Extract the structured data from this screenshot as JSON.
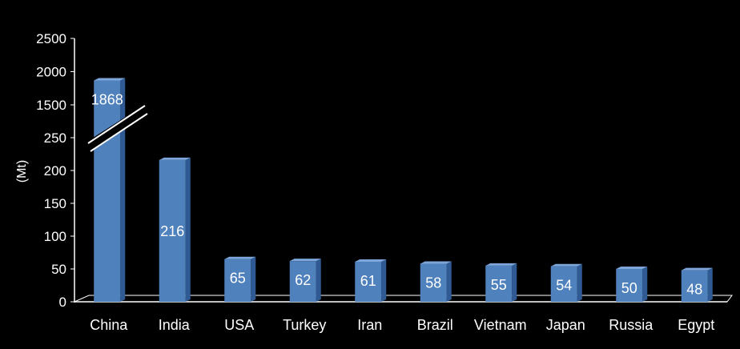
{
  "chart_data": {
    "type": "bar",
    "categories": [
      "China",
      "India",
      "USA",
      "Turkey",
      "Iran",
      "Brazil",
      "Vietnam",
      "Japan",
      "Russia",
      "Egypt"
    ],
    "values": [
      1868,
      216,
      65,
      62,
      61,
      58,
      55,
      54,
      50,
      48
    ],
    "data_labels": [
      "1868",
      "216",
      "65",
      "62",
      "61",
      "58",
      "55",
      "54",
      "50",
      "48"
    ],
    "ylabel": "(Mt)",
    "xlabel": "",
    "title": "",
    "y_ticks": [
      "0",
      "50",
      "100",
      "150",
      "200",
      "250",
      "1500",
      "2000",
      "2500"
    ],
    "y_axis_break": {
      "lower_max": 250,
      "upper_min": 1500,
      "upper_max": 2500
    },
    "ylim": [
      0,
      2500
    ],
    "grid": false,
    "legend": "none",
    "bar_color": "#4F81BD",
    "background_color": "#000000",
    "text_color": "#FFFFFF"
  }
}
